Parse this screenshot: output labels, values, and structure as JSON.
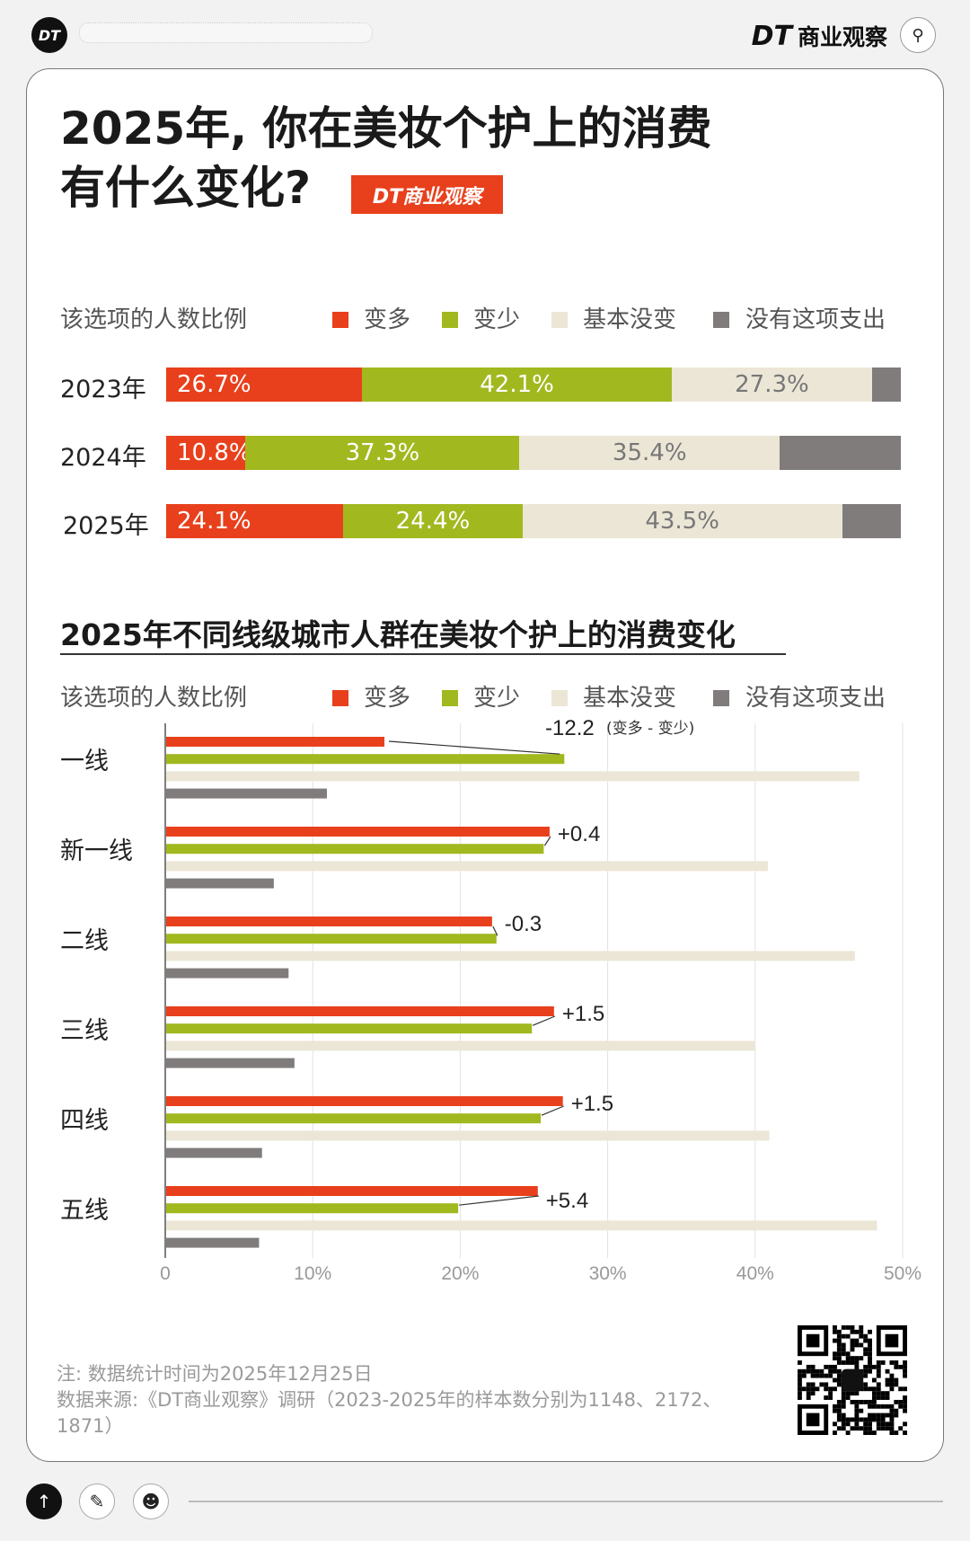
{
  "header": {
    "logo": "DT",
    "brand_mark": "DT",
    "brand_name": "商业观察",
    "search_icon": "search-icon"
  },
  "title": {
    "line1": "2025年, 你在美妆个护上的消费",
    "line2": "有什么变化?",
    "badge": "DT商业观察"
  },
  "legend": {
    "caption": "该选项的人数比例",
    "items": [
      {
        "label": "变多",
        "color": "#e8401c"
      },
      {
        "label": "变少",
        "color": "#a2b81f"
      },
      {
        "label": "基本没变",
        "color": "#ece6d6"
      },
      {
        "label": "没有这项支出",
        "color": "#807c7c"
      }
    ]
  },
  "chart_data": [
    {
      "type": "bar",
      "orientation": "horizontal-stacked",
      "categories": [
        "2023年",
        "2024年",
        "2025年"
      ],
      "series": [
        {
          "name": "变多",
          "values": [
            26.7,
            10.8,
            24.1
          ],
          "labels": [
            "26.7%",
            "10.8%",
            "24.1%"
          ]
        },
        {
          "name": "变少",
          "values": [
            42.1,
            37.3,
            24.4
          ],
          "labels": [
            "42.1%",
            "37.3%",
            "24.4%"
          ]
        },
        {
          "name": "基本没变",
          "values": [
            27.3,
            35.4,
            43.5
          ],
          "labels": [
            "27.3%",
            "35.4%",
            "43.5%"
          ]
        },
        {
          "name": "没有这项支出",
          "values": [
            3.9,
            16.5,
            8.0
          ]
        }
      ],
      "xlim": [
        0,
        100
      ]
    },
    {
      "type": "bar",
      "orientation": "horizontal-grouped",
      "title": "2025年不同线级城市人群在美妆个护上的消费变化",
      "categories": [
        "一线",
        "新一线",
        "二线",
        "三线",
        "四线",
        "五线"
      ],
      "series": [
        {
          "name": "变多",
          "values": [
            14.8,
            26.0,
            22.1,
            26.3,
            26.9,
            25.2
          ]
        },
        {
          "name": "变少",
          "values": [
            27.0,
            25.6,
            22.4,
            24.8,
            25.4,
            19.8
          ]
        },
        {
          "name": "基本没变",
          "values": [
            47.0,
            40.8,
            46.7,
            39.9,
            40.9,
            48.2
          ]
        },
        {
          "name": "没有这项支出",
          "values": [
            10.9,
            7.3,
            8.3,
            8.7,
            6.5,
            6.3
          ]
        }
      ],
      "annotations": [
        "-12.2",
        "+0.4",
        "-0.3",
        "+1.5",
        "+1.5",
        "+5.4"
      ],
      "annotation_note": "(变多 - 变少)",
      "xticks": [
        "0",
        "10%",
        "20%",
        "30%",
        "40%",
        "50%"
      ],
      "xlim": [
        0,
        50
      ],
      "grid": true
    }
  ],
  "notes": {
    "line1": "注: 数据统计时间为2025年12月25日",
    "line2": "数据来源:《DT商业观察》调研（2023-2025年的样本数分别为1148、2172、",
    "line3": "1871）"
  },
  "bottom_bar": {
    "icons": [
      "arrow-up-icon",
      "pencil-icon",
      "user-icon"
    ]
  }
}
